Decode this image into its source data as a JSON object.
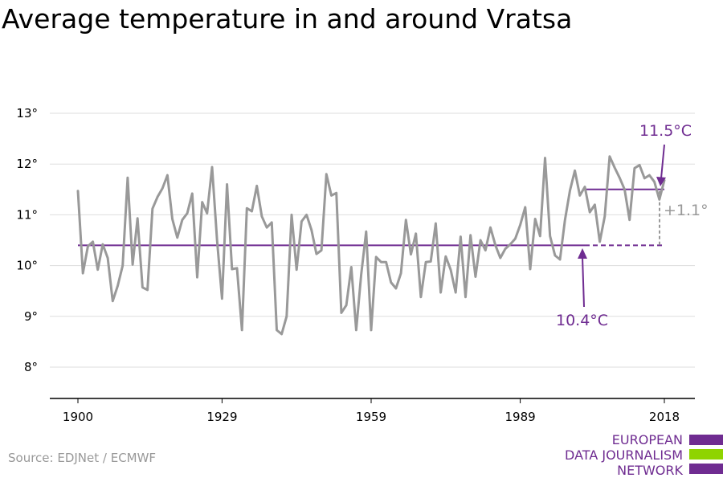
{
  "title": "Average temperature in and around Vratsa",
  "source": "Source: EDJNet / ECMWF",
  "logo": {
    "lines": [
      "EUROPEAN",
      "DATA JOURNALISM",
      "NETWORK"
    ],
    "colors": [
      "#6f2c91",
      "#8fd400",
      "#6f2c91"
    ]
  },
  "colors": {
    "series": "#999999",
    "average": "#6f2c91",
    "diff": "#999999",
    "grid": "#dddddd",
    "axis": "#000000"
  },
  "chart_data": {
    "type": "line",
    "title": "Average temperature in and around Vratsa",
    "xlabel": "",
    "ylabel": "",
    "xlim": [
      1900,
      2018
    ],
    "ylim": [
      8,
      13
    ],
    "xticks": [
      1900,
      1929,
      1959,
      1989,
      2018
    ],
    "xtick_labels": [
      "1900",
      "1929",
      "1959",
      "1989",
      "2018"
    ],
    "yticks": [
      8,
      9,
      10,
      11,
      12,
      13
    ],
    "ytick_labels": [
      "8°",
      "9°",
      "10°",
      "11°",
      "12°",
      "13°"
    ],
    "grid": true,
    "series": [
      {
        "x": [
          1900,
          1901,
          1902,
          1903,
          1904,
          1905,
          1906,
          1907,
          1908,
          1909,
          1910,
          1911,
          1912,
          1913,
          1914,
          1915,
          1916,
          1917,
          1918,
          1919,
          1920,
          1921,
          1922,
          1923,
          1924,
          1925,
          1926,
          1927,
          1928,
          1929,
          1930,
          1931,
          1932,
          1933,
          1934,
          1935,
          1936,
          1937,
          1938,
          1939,
          1940,
          1941,
          1942,
          1943,
          1944,
          1945,
          1946,
          1947,
          1948,
          1949,
          1950,
          1951,
          1952,
          1953,
          1954,
          1955,
          1956,
          1957,
          1958,
          1959,
          1960,
          1961,
          1962,
          1963,
          1964,
          1965,
          1966,
          1967,
          1968,
          1969,
          1970,
          1971,
          1972,
          1973,
          1974,
          1975,
          1976,
          1977,
          1978,
          1979,
          1980,
          1981,
          1982,
          1983,
          1984,
          1985,
          1986,
          1987,
          1988,
          1989,
          1990,
          1991,
          1992,
          1993,
          1994,
          1995,
          1996,
          1997,
          1998,
          1999,
          2000,
          2001,
          2002,
          2003,
          2004,
          2005,
          2006,
          2007,
          2008,
          2009,
          2010,
          2011,
          2012,
          2013,
          2014,
          2015,
          2016,
          2017,
          2018
        ],
        "values": [
          11.47,
          9.85,
          10.38,
          10.47,
          9.92,
          10.42,
          10.15,
          9.3,
          9.6,
          10.0,
          11.73,
          10.02,
          10.93,
          9.57,
          9.52,
          11.12,
          11.35,
          11.52,
          11.78,
          10.92,
          10.55,
          10.9,
          11.03,
          11.42,
          9.77,
          11.25,
          11.03,
          11.94,
          10.5,
          9.35,
          11.6,
          9.93,
          9.95,
          8.73,
          11.13,
          11.07,
          11.57,
          10.97,
          10.75,
          10.85,
          8.73,
          8.65,
          9.0,
          11.0,
          9.92,
          10.87,
          11.0,
          10.7,
          10.23,
          10.3,
          11.8,
          11.38,
          11.43,
          9.07,
          9.22,
          9.97,
          8.73,
          9.82,
          10.67,
          8.73,
          10.17,
          10.07,
          10.07,
          9.67,
          9.55,
          9.85,
          10.9,
          10.22,
          10.63,
          9.38,
          10.07,
          10.08,
          10.83,
          9.47,
          10.18,
          9.92,
          9.47,
          10.57,
          9.38,
          10.6,
          9.78,
          10.5,
          10.3,
          10.75,
          10.4,
          10.15,
          10.33,
          10.42,
          10.53,
          10.8,
          11.15,
          9.93,
          10.92,
          10.58,
          12.12,
          10.58,
          10.2,
          10.12,
          10.9,
          11.48,
          11.87,
          11.38,
          11.55,
          11.05,
          11.2,
          10.47,
          10.97,
          12.15,
          11.93,
          11.73,
          11.5,
          10.9,
          11.92,
          11.98,
          11.72,
          11.78,
          11.65,
          11.3,
          11.68
        ]
      }
    ],
    "reference_lines": [
      {
        "label": "10.4°C",
        "value": 10.4,
        "x_start": 1900,
        "x_end": 2002
      },
      {
        "label": "11.5°C",
        "value": 11.5,
        "x_start": 2002,
        "x_end": 2018
      }
    ],
    "annotations": {
      "recent_label": "11.5°C",
      "base_label": "10.4°C",
      "difference_label": "+1.1°"
    }
  }
}
